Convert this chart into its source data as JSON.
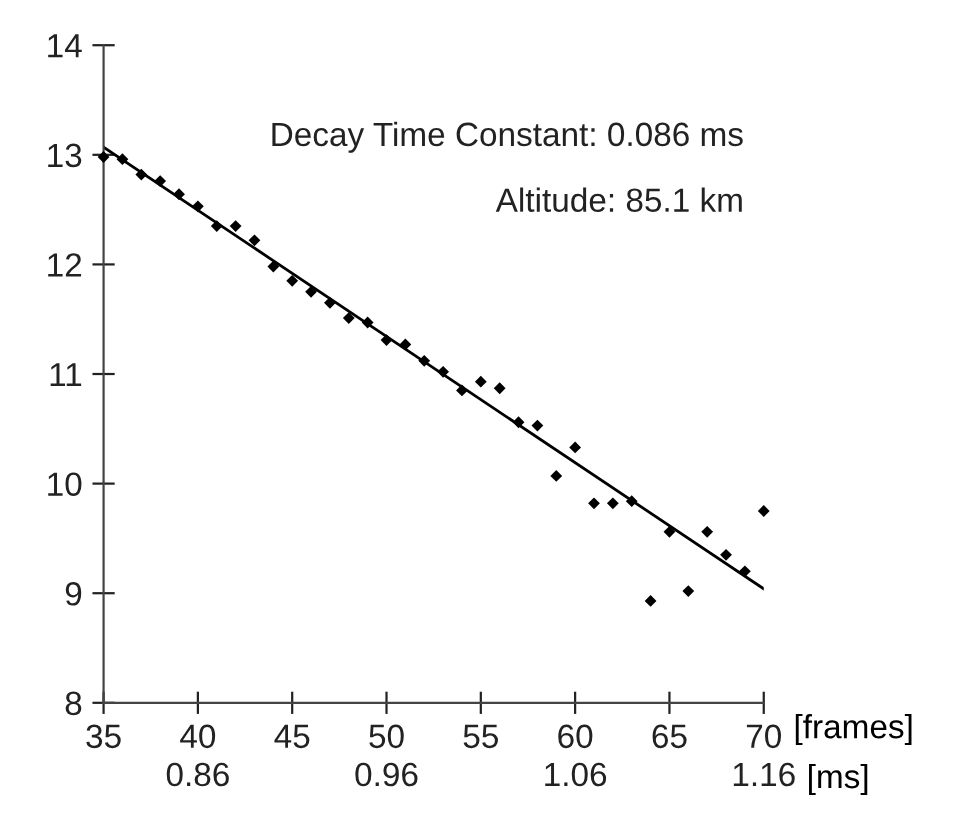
{
  "chart_data": {
    "type": "scatter",
    "xlabel": "[frames]",
    "x2label": "[ms]",
    "xlim": [
      35,
      70
    ],
    "xticks": [
      35,
      40,
      45,
      50,
      55,
      60,
      65,
      70
    ],
    "x2lim": [
      0.81,
      1.16
    ],
    "x2ticks": [
      0.86,
      0.96,
      1.06,
      1.16
    ],
    "ylim": [
      8,
      14
    ],
    "yticks": [
      8,
      9,
      10,
      11,
      12,
      13,
      14
    ],
    "grid": false,
    "legend": false,
    "annotations": [
      "Decay Time Constant: 0.086 ms",
      "Altitude: 85.1 km"
    ],
    "series": [
      {
        "color": "#000000",
        "marker": "diamond",
        "x": [
          35,
          36,
          37,
          38,
          39,
          40,
          41,
          42,
          43,
          44,
          45,
          46,
          47,
          48,
          49,
          50,
          51,
          52,
          53,
          54,
          55,
          56,
          57,
          58,
          59,
          60,
          61,
          62,
          63,
          64,
          65,
          66,
          67,
          68,
          69,
          70
        ],
        "values": [
          12.98,
          12.96,
          12.82,
          12.76,
          12.64,
          12.53,
          12.35,
          12.35,
          12.22,
          11.98,
          11.85,
          11.75,
          11.65,
          11.51,
          11.47,
          11.31,
          11.27,
          11.12,
          11.02,
          10.85,
          10.93,
          10.87,
          10.56,
          10.53,
          10.07,
          10.33,
          9.82,
          9.82,
          9.84,
          8.93,
          9.56,
          9.02,
          9.56,
          9.35,
          9.2,
          9.75
        ]
      },
      {
        "type": "line",
        "color": "#000000",
        "marker": "none",
        "line_style": "solid",
        "x": [
          35,
          70
        ],
        "values": [
          13.07,
          9.04
        ]
      }
    ]
  }
}
